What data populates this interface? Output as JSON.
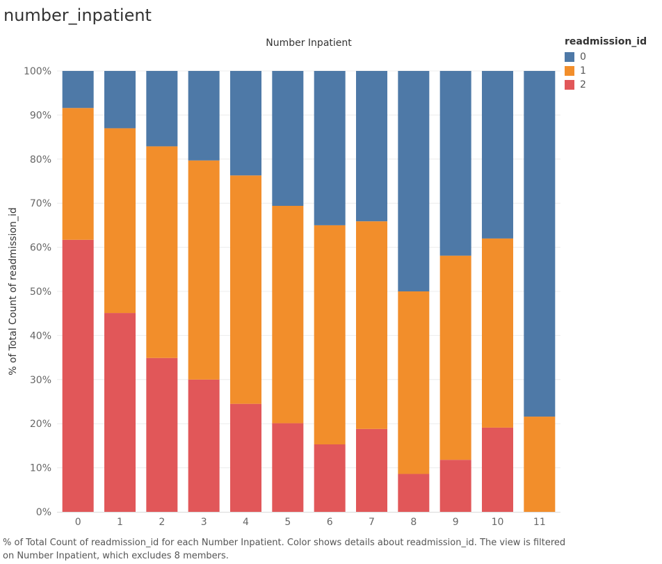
{
  "sheet_title": "number_inpatient",
  "caption": "% of Total Count of readmission_id for each Number Inpatient.  Color shows details about readmission_id. The view is filtered on Number Inpatient, which excludes 8 members.",
  "legend": {
    "title": "readmission_id",
    "items": [
      {
        "label": "0",
        "color": "#4e79a7"
      },
      {
        "label": "1",
        "color": "#f28e2b"
      },
      {
        "label": "2",
        "color": "#e15759"
      }
    ]
  },
  "chart_data": {
    "type": "bar",
    "stacked": true,
    "title": "Number Inpatient",
    "xlabel": "",
    "ylabel": "% of Total Count of readmission_id",
    "ylim": [
      0,
      100
    ],
    "yticks": [
      "0%",
      "10%",
      "20%",
      "30%",
      "40%",
      "50%",
      "60%",
      "70%",
      "80%",
      "90%",
      "100%"
    ],
    "categories": [
      "0",
      "1",
      "2",
      "3",
      "4",
      "5",
      "6",
      "7",
      "8",
      "9",
      "10",
      "11"
    ],
    "series": [
      {
        "name": "2",
        "color": "#e15759",
        "values": [
          61.7,
          45.1,
          34.9,
          30.0,
          24.5,
          20.1,
          15.3,
          18.8,
          8.6,
          11.8,
          19.1,
          0.0
        ]
      },
      {
        "name": "1",
        "color": "#f28e2b",
        "values": [
          29.9,
          41.9,
          48.0,
          49.7,
          51.8,
          49.3,
          49.7,
          47.1,
          41.4,
          46.3,
          42.9,
          21.6
        ]
      },
      {
        "name": "0",
        "color": "#4e79a7",
        "values": [
          8.4,
          13.0,
          17.1,
          20.3,
          23.7,
          30.6,
          35.0,
          34.1,
          50.0,
          41.9,
          38.0,
          78.4
        ]
      }
    ],
    "grid": true,
    "legend_position": "right"
  }
}
